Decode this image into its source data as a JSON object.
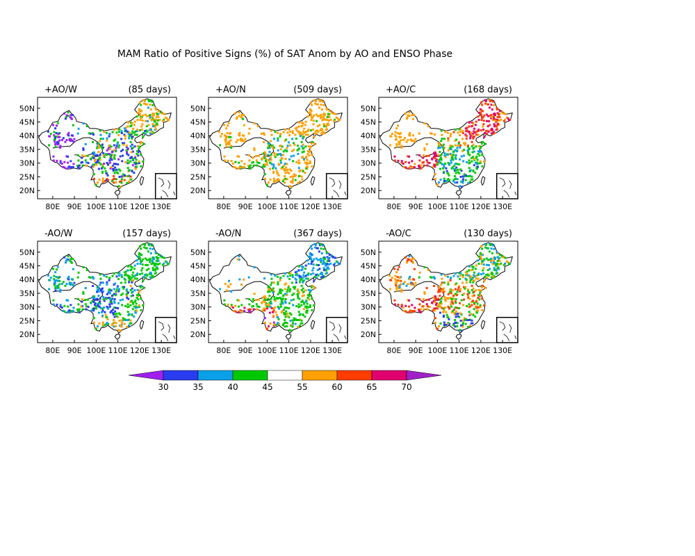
{
  "title": "MAM Ratio of Positive Signs (%) of SAT Anom by AO and ENSO Phase",
  "lon_ticks": [
    "80E",
    "90E",
    "100E",
    "110E",
    "120E",
    "130E"
  ],
  "lat_ticks": [
    "50N",
    "45N",
    "40N",
    "35N",
    "30N",
    "25N",
    "20N"
  ],
  "panels": [
    {
      "label": "+AO/W",
      "days": "(85 days)",
      "pattern": "mixed_south_blue"
    },
    {
      "label": "+AO/N",
      "days": "(509 days)",
      "pattern": "orange_dominant"
    },
    {
      "label": "+AO/C",
      "days": "(168 days)",
      "pattern": "red_ne_green_south"
    },
    {
      "label": "-AO/W",
      "days": "(157 days)",
      "pattern": "green_blue"
    },
    {
      "label": "-AO/N",
      "days": "(367 days)",
      "pattern": "green_blue_ne"
    },
    {
      "label": "-AO/C",
      "days": "(130 days)",
      "pattern": "orange_red_west"
    }
  ],
  "colorbar": {
    "labels": [
      "30",
      "35",
      "40",
      "45",
      "55",
      "60",
      "65",
      "70"
    ],
    "bins": [
      {
        "range": "<30",
        "color": "#a020f0"
      },
      {
        "range": "30-35",
        "color": "#2a3cf0"
      },
      {
        "range": "35-40",
        "color": "#0aa0e8"
      },
      {
        "range": "40-45",
        "color": "#00c800"
      },
      {
        "range": "45-55",
        "color": "#ffffff"
      },
      {
        "range": "55-60",
        "color": "#ffa000"
      },
      {
        "range": "60-65",
        "color": "#ff3c00"
      },
      {
        "range": "65-70",
        "color": "#e0006e"
      },
      {
        "range": ">70",
        "color": "#a020c8"
      }
    ]
  }
}
